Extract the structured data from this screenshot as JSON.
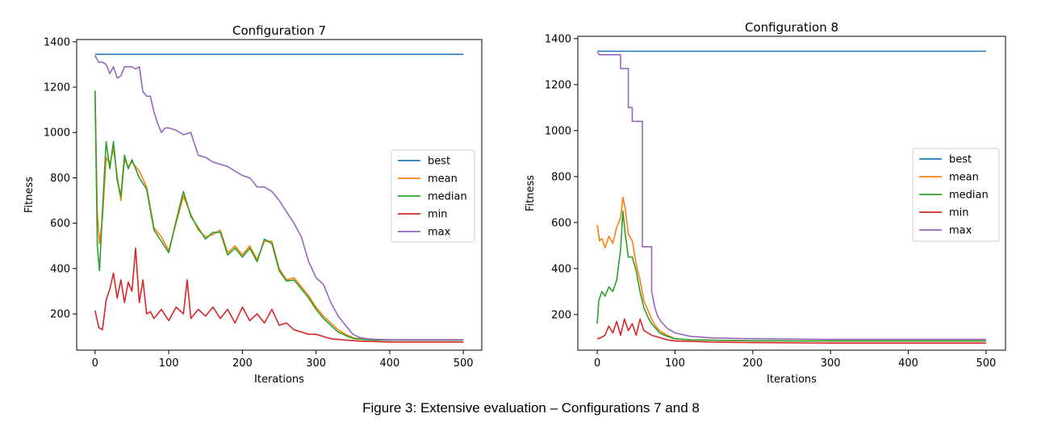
{
  "caption": "Figure 3: Extensive evaluation – Configurations 7 and 8",
  "colors": {
    "best": "#1f77b4",
    "mean": "#ff7f0e",
    "median": "#2ca02c",
    "min": "#d62728",
    "max": "#9467bd"
  },
  "chart_data": [
    {
      "type": "line",
      "title": "Configuration 7",
      "xlabel": "Iterations",
      "ylabel": "Fitness",
      "xlim": [
        -25,
        525
      ],
      "ylim": [
        40,
        1410
      ],
      "xticks": [
        0,
        100,
        200,
        300,
        400,
        500
      ],
      "yticks": [
        200,
        400,
        600,
        800,
        1000,
        1200,
        1400
      ],
      "legend": "center-right",
      "grid": false,
      "series": [
        {
          "name": "best",
          "x": [
            0,
            500
          ],
          "y": [
            1345,
            1345
          ]
        },
        {
          "name": "mean",
          "x": [
            0,
            3,
            6,
            10,
            15,
            20,
            25,
            30,
            35,
            40,
            45,
            50,
            60,
            70,
            80,
            90,
            100,
            110,
            120,
            130,
            140,
            150,
            160,
            170,
            180,
            190,
            200,
            210,
            220,
            230,
            240,
            250,
            260,
            270,
            280,
            290,
            300,
            310,
            320,
            330,
            340,
            350,
            360,
            370,
            380,
            400,
            450,
            500
          ],
          "y": [
            1180,
            650,
            510,
            620,
            890,
            860,
            930,
            810,
            700,
            880,
            850,
            870,
            830,
            760,
            580,
            540,
            480,
            600,
            720,
            640,
            570,
            540,
            550,
            570,
            470,
            500,
            460,
            500,
            440,
            520,
            520,
            400,
            350,
            360,
            320,
            280,
            230,
            190,
            160,
            130,
            110,
            95,
            90,
            88,
            86,
            85,
            85,
            85
          ]
        },
        {
          "name": "median",
          "x": [
            0,
            3,
            6,
            10,
            15,
            20,
            25,
            30,
            35,
            40,
            45,
            50,
            60,
            70,
            80,
            90,
            100,
            110,
            120,
            130,
            140,
            150,
            160,
            170,
            180,
            190,
            200,
            210,
            220,
            230,
            240,
            250,
            260,
            270,
            280,
            290,
            300,
            310,
            320,
            330,
            340,
            350,
            360,
            370,
            380,
            400,
            450,
            500
          ],
          "y": [
            1185,
            500,
            390,
            650,
            960,
            840,
            960,
            790,
            720,
            900,
            840,
            880,
            800,
            750,
            570,
            520,
            470,
            610,
            740,
            630,
            580,
            530,
            560,
            560,
            460,
            490,
            450,
            490,
            430,
            530,
            510,
            390,
            345,
            350,
            310,
            270,
            220,
            180,
            150,
            120,
            105,
            92,
            88,
            86,
            85,
            84,
            84,
            84
          ]
        },
        {
          "name": "min",
          "x": [
            0,
            5,
            10,
            15,
            20,
            25,
            30,
            35,
            40,
            45,
            50,
            55,
            60,
            65,
            70,
            75,
            80,
            90,
            100,
            110,
            120,
            125,
            130,
            140,
            150,
            160,
            170,
            180,
            190,
            200,
            210,
            220,
            230,
            240,
            250,
            260,
            270,
            280,
            290,
            300,
            320,
            340,
            360,
            380,
            400,
            450,
            500
          ],
          "y": [
            215,
            140,
            130,
            260,
            310,
            380,
            270,
            350,
            250,
            340,
            300,
            490,
            250,
            350,
            200,
            210,
            180,
            220,
            170,
            230,
            200,
            350,
            180,
            220,
            190,
            230,
            180,
            220,
            160,
            230,
            170,
            200,
            160,
            220,
            150,
            160,
            130,
            120,
            110,
            110,
            90,
            85,
            80,
            78,
            76,
            76,
            76
          ]
        },
        {
          "name": "max",
          "x": [
            0,
            5,
            10,
            15,
            20,
            25,
            30,
            35,
            40,
            45,
            50,
            55,
            60,
            65,
            70,
            75,
            80,
            85,
            90,
            95,
            100,
            110,
            120,
            130,
            140,
            150,
            160,
            170,
            180,
            190,
            200,
            210,
            220,
            230,
            240,
            250,
            260,
            270,
            280,
            290,
            300,
            310,
            320,
            330,
            340,
            350,
            360,
            370,
            380,
            400,
            450,
            500
          ],
          "y": [
            1340,
            1310,
            1310,
            1300,
            1260,
            1290,
            1240,
            1250,
            1290,
            1290,
            1290,
            1280,
            1290,
            1180,
            1160,
            1160,
            1090,
            1040,
            1000,
            1020,
            1020,
            1010,
            990,
            1000,
            900,
            890,
            870,
            860,
            850,
            830,
            810,
            800,
            760,
            760,
            740,
            700,
            650,
            600,
            540,
            430,
            360,
            330,
            250,
            190,
            150,
            110,
            95,
            90,
            88,
            86,
            86,
            86
          ]
        }
      ]
    },
    {
      "type": "line",
      "title": "Configuration 8",
      "xlabel": "Iterations",
      "ylabel": "Fitness",
      "xlim": [
        -25,
        525
      ],
      "ylim": [
        45,
        1410
      ],
      "xticks": [
        0,
        100,
        200,
        300,
        400,
        500
      ],
      "yticks": [
        200,
        400,
        600,
        800,
        1000,
        1200,
        1400
      ],
      "legend": "center-right",
      "grid": false,
      "series": [
        {
          "name": "best",
          "x": [
            0,
            500
          ],
          "y": [
            1345,
            1345
          ]
        },
        {
          "name": "mean",
          "x": [
            0,
            3,
            6,
            10,
            15,
            20,
            25,
            30,
            33,
            36,
            40,
            45,
            50,
            55,
            60,
            65,
            70,
            75,
            80,
            90,
            100,
            120,
            150,
            200,
            300,
            400,
            500
          ],
          "y": [
            590,
            520,
            530,
            490,
            540,
            510,
            580,
            620,
            710,
            660,
            550,
            520,
            420,
            350,
            260,
            220,
            180,
            150,
            130,
            110,
            95,
            90,
            88,
            86,
            85,
            85,
            85
          ]
        },
        {
          "name": "median",
          "x": [
            0,
            2,
            4,
            6,
            10,
            15,
            20,
            25,
            30,
            33,
            36,
            40,
            45,
            50,
            55,
            60,
            65,
            70,
            75,
            80,
            90,
            100,
            120,
            150,
            200,
            300,
            400,
            500
          ],
          "y": [
            160,
            260,
            280,
            300,
            280,
            320,
            300,
            350,
            480,
            650,
            550,
            450,
            450,
            390,
            300,
            230,
            190,
            160,
            140,
            120,
            105,
            95,
            90,
            88,
            86,
            85,
            85,
            85
          ]
        },
        {
          "name": "min",
          "x": [
            0,
            5,
            10,
            15,
            20,
            25,
            30,
            35,
            40,
            45,
            50,
            55,
            60,
            65,
            70,
            80,
            90,
            100,
            150,
            200,
            300,
            400,
            500
          ],
          "y": [
            95,
            100,
            110,
            150,
            120,
            170,
            110,
            180,
            130,
            160,
            110,
            180,
            130,
            120,
            110,
            100,
            90,
            85,
            80,
            78,
            76,
            76,
            76
          ]
        },
        {
          "name": "max",
          "x": [
            0,
            3,
            30,
            30,
            40,
            40,
            45,
            45,
            58,
            58,
            70,
            70,
            74,
            78,
            82,
            90,
            100,
            120,
            150,
            200,
            300,
            400,
            500
          ],
          "y": [
            1340,
            1330,
            1330,
            1270,
            1270,
            1100,
            1100,
            1040,
            1040,
            495,
            495,
            300,
            230,
            190,
            170,
            140,
            120,
            105,
            98,
            95,
            92,
            92,
            92
          ]
        }
      ]
    }
  ]
}
